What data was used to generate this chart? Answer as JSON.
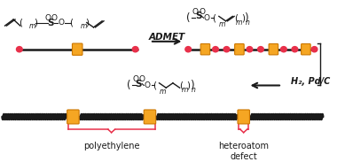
{
  "bg_color": "#ffffff",
  "orange_color": "#F5A623",
  "orange_edge": "#CC7700",
  "red_color": "#E8304A",
  "chain_color": "#1a1a1a",
  "brace_color": "#E8304A",
  "label_polyethylene": "polyethylene",
  "label_heteroatom": "heteroatom\ndefect",
  "label_admet": "ADMET",
  "label_h2pdc": "H₂, Pd/C",
  "admet_fontsize": 7.5,
  "label_fontsize": 7.0,
  "chem_fontsize": 6.5,
  "sub_fontsize": 5.5
}
